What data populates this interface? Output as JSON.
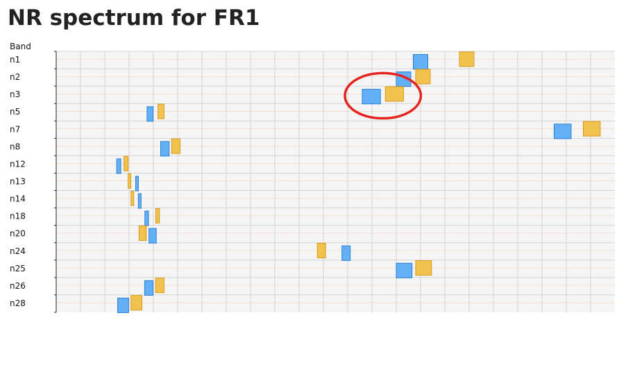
{
  "page": {
    "title": "NR spectrum for FR1"
  },
  "colors": {
    "uplink_fill": "#63b0f7",
    "uplink_stroke": "#2a7fd4",
    "downlink_fill": "#f2c24f",
    "downlink_stroke": "#d99a1c",
    "plot_background": "#f5f5f5",
    "grid_line": "#d4d4d4",
    "highlight_ring": "#e52420"
  },
  "chart_data": {
    "type": "range-bar",
    "ylabel": "Band",
    "categories": [
      "n1",
      "n2",
      "n3",
      "n5",
      "n7",
      "n8",
      "n12",
      "n13",
      "n14",
      "n18",
      "n20",
      "n24",
      "n25",
      "n26",
      "n28"
    ],
    "x_unit": "MHz",
    "xlim": [
      450,
      2750
    ],
    "grid": true,
    "grid_step": 100,
    "series": [
      {
        "key": "uplink",
        "ranges": [
          {
            "band": "n1",
            "start": 1920,
            "end": 1980
          },
          {
            "band": "n2",
            "start": 1850,
            "end": 1910
          },
          {
            "band": "n3",
            "start": 1710,
            "end": 1785
          },
          {
            "band": "n5",
            "start": 824,
            "end": 849
          },
          {
            "band": "n7",
            "start": 2500,
            "end": 2570
          },
          {
            "band": "n8",
            "start": 880,
            "end": 915
          },
          {
            "band": "n12",
            "start": 699,
            "end": 716
          },
          {
            "band": "n13",
            "start": 777,
            "end": 787
          },
          {
            "band": "n14",
            "start": 788,
            "end": 798
          },
          {
            "band": "n18",
            "start": 815,
            "end": 830
          },
          {
            "band": "n20",
            "start": 832,
            "end": 862
          },
          {
            "band": "n24",
            "start": 1626.5,
            "end": 1660.5
          },
          {
            "band": "n25",
            "start": 1850,
            "end": 1915
          },
          {
            "band": "n26",
            "start": 814,
            "end": 849
          },
          {
            "band": "n28",
            "start": 703,
            "end": 748
          }
        ]
      },
      {
        "key": "downlink",
        "ranges": [
          {
            "band": "n1",
            "start": 2110,
            "end": 2170
          },
          {
            "band": "n2",
            "start": 1930,
            "end": 1990
          },
          {
            "band": "n3",
            "start": 1805,
            "end": 1880
          },
          {
            "band": "n5",
            "start": 869,
            "end": 894
          },
          {
            "band": "n7",
            "start": 2620,
            "end": 2690
          },
          {
            "band": "n8",
            "start": 925,
            "end": 960
          },
          {
            "band": "n12",
            "start": 729,
            "end": 746
          },
          {
            "band": "n13",
            "start": 746,
            "end": 756
          },
          {
            "band": "n14",
            "start": 758,
            "end": 768
          },
          {
            "band": "n18",
            "start": 860,
            "end": 875
          },
          {
            "band": "n20",
            "start": 791,
            "end": 821
          },
          {
            "band": "n24",
            "start": 1525,
            "end": 1559
          },
          {
            "band": "n25",
            "start": 1930,
            "end": 1995
          },
          {
            "band": "n26",
            "start": 859,
            "end": 894
          },
          {
            "band": "n28",
            "start": 758,
            "end": 803
          }
        ]
      }
    ],
    "annotation": {
      "shape": "ellipse",
      "band": "n3",
      "color": "#e52420"
    }
  }
}
